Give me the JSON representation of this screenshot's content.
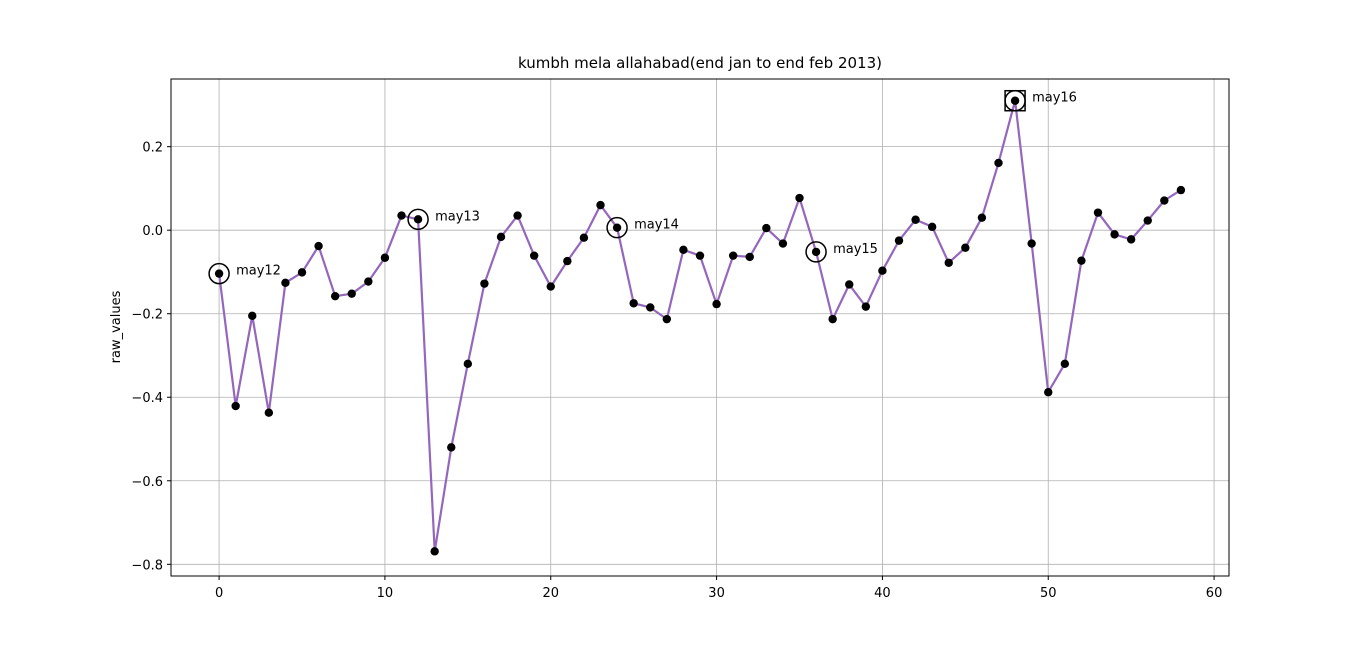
{
  "chart_data": {
    "type": "line",
    "title": "kumbh mela allahabad(end jan to end feb 2013)",
    "xlabel": "",
    "ylabel": "raw_values",
    "xlim": [
      -2.9,
      60.9
    ],
    "ylim": [
      -0.828,
      0.362
    ],
    "xticks": [
      0,
      10,
      20,
      30,
      40,
      50,
      60
    ],
    "yticks": [
      -0.8,
      -0.6,
      -0.4,
      -0.2,
      0.0,
      0.2
    ],
    "ytick_labels": [
      "−0.8",
      "−0.6",
      "−0.4",
      "−0.2",
      "0.0",
      "0.2"
    ],
    "grid": true,
    "line_color": "#9467bd",
    "marker_color": "#000000",
    "series": [
      {
        "x": [
          0,
          1,
          2,
          3,
          4,
          5,
          6,
          7,
          8,
          9,
          10,
          11,
          12,
          13,
          14,
          15,
          16,
          17,
          18,
          19,
          20,
          21,
          22,
          23,
          24,
          25,
          26,
          27,
          28,
          29,
          30,
          31,
          32,
          33,
          34,
          35,
          36,
          37,
          38,
          39,
          40,
          41,
          42,
          43,
          44,
          45,
          46,
          47,
          48,
          49,
          50,
          51,
          52,
          53,
          54,
          55,
          56,
          57,
          58
        ],
        "values": [
          -0.104,
          -0.421,
          -0.205,
          -0.437,
          -0.126,
          -0.101,
          -0.038,
          -0.158,
          -0.152,
          -0.123,
          -0.066,
          0.035,
          0.026,
          -0.769,
          -0.52,
          -0.32,
          -0.128,
          -0.016,
          0.035,
          -0.061,
          -0.135,
          -0.074,
          -0.018,
          0.06,
          0.006,
          -0.175,
          -0.185,
          -0.213,
          -0.047,
          -0.061,
          -0.177,
          -0.061,
          -0.064,
          0.005,
          -0.032,
          0.077,
          -0.052,
          -0.213,
          -0.13,
          -0.183,
          -0.097,
          -0.025,
          0.025,
          0.008,
          -0.078,
          -0.042,
          0.03,
          0.161,
          0.31,
          -0.032,
          -0.388,
          -0.32,
          -0.073,
          0.042,
          -0.01,
          -0.022,
          0.023,
          0.071,
          0.096
        ]
      }
    ],
    "annotations": [
      {
        "x": 0,
        "y": -0.104,
        "text": "may12",
        "marker": "circle"
      },
      {
        "x": 12,
        "y": 0.026,
        "text": "may13",
        "marker": "circle"
      },
      {
        "x": 24,
        "y": 0.006,
        "text": "may14",
        "marker": "circle"
      },
      {
        "x": 36,
        "y": -0.052,
        "text": "may15",
        "marker": "circle"
      },
      {
        "x": 48,
        "y": 0.31,
        "text": "may16",
        "marker": "circle-square"
      }
    ]
  }
}
